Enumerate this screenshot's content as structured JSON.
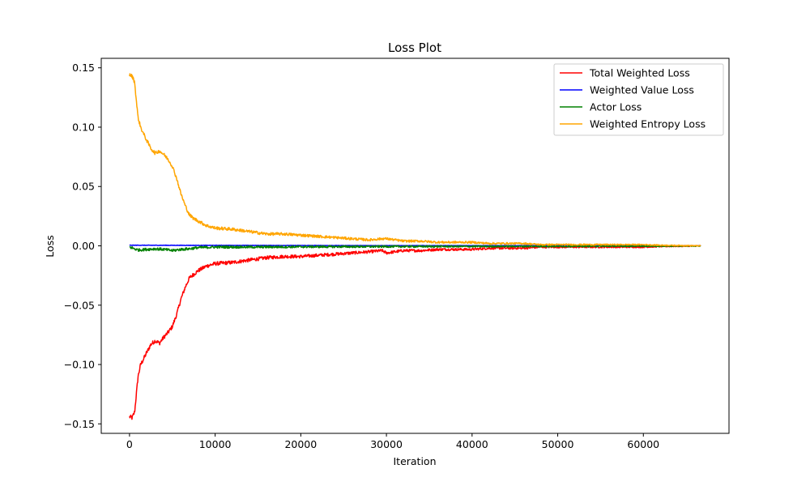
{
  "chart_data": {
    "type": "line",
    "title": "Loss Plot",
    "xlabel": "Iteration",
    "ylabel": "Loss",
    "xlim": [
      -3300,
      70000
    ],
    "ylim": [
      -0.158,
      0.158
    ],
    "xticks": [
      0,
      10000,
      20000,
      30000,
      40000,
      50000,
      60000
    ],
    "xtick_labels": [
      "0",
      "10000",
      "20000",
      "30000",
      "40000",
      "50000",
      "60000"
    ],
    "yticks": [
      -0.15,
      -0.1,
      -0.05,
      0.0,
      0.05,
      0.1,
      0.15
    ],
    "ytick_labels": [
      "−0.15",
      "−0.10",
      "−0.05",
      "0.00",
      "0.05",
      "0.10",
      "0.15"
    ],
    "grid": false,
    "legend_position": "top-right",
    "series": [
      {
        "name": "Total Weighted Loss",
        "color": "#ff0000",
        "noise": 0.0018,
        "x": [
          0,
          300,
          600,
          800,
          1000,
          1300,
          1600,
          2000,
          2500,
          3000,
          3500,
          4000,
          4500,
          5000,
          5500,
          6000,
          6500,
          7000,
          7500,
          8000,
          9000,
          10000,
          12000,
          14000,
          16000,
          18000,
          20000,
          22000,
          24000,
          26000,
          28000,
          29500,
          30000,
          32000,
          34000,
          36000,
          38000,
          40000,
          42000,
          44000,
          46000,
          48000,
          50000,
          52000,
          54000,
          56000,
          58000,
          60000,
          62000,
          64000,
          66700
        ],
        "y": [
          -0.144,
          -0.145,
          -0.14,
          -0.125,
          -0.11,
          -0.1,
          -0.096,
          -0.09,
          -0.083,
          -0.08,
          -0.082,
          -0.077,
          -0.073,
          -0.068,
          -0.058,
          -0.045,
          -0.035,
          -0.027,
          -0.024,
          -0.021,
          -0.017,
          -0.015,
          -0.014,
          -0.012,
          -0.01,
          -0.009,
          -0.009,
          -0.008,
          -0.007,
          -0.006,
          -0.005,
          -0.004,
          -0.006,
          -0.004,
          -0.004,
          -0.003,
          -0.003,
          -0.003,
          -0.002,
          -0.002,
          -0.002,
          -0.001,
          -0.001,
          -0.001,
          -0.001,
          -0.001,
          -0.001,
          -0.001,
          -0.0005,
          -0.0003,
          0.0
        ]
      },
      {
        "name": "Weighted Value Loss",
        "color": "#0000ff",
        "noise": 0.0002,
        "x": [
          0,
          10000,
          20000,
          30000,
          40000,
          50000,
          60000,
          66700
        ],
        "y": [
          0.0005,
          0.0004,
          0.0003,
          0.0002,
          0.0002,
          0.0001,
          0.0001,
          0.0001
        ]
      },
      {
        "name": "Actor Loss",
        "color": "#008000",
        "noise": 0.0012,
        "x": [
          0,
          1000,
          2000,
          3000,
          4000,
          5000,
          6000,
          7000,
          8000,
          10000,
          15000,
          20000,
          30000,
          40000,
          50000,
          60000,
          66700
        ],
        "y": [
          -0.001,
          -0.0035,
          -0.003,
          -0.0025,
          -0.003,
          -0.004,
          -0.003,
          -0.0025,
          -0.0015,
          -0.001,
          -0.001,
          -0.0008,
          -0.0006,
          -0.0005,
          -0.0004,
          -0.0003,
          -0.0002
        ]
      },
      {
        "name": "Weighted Entropy Loss",
        "color": "#ffa500",
        "noise": 0.0015,
        "x": [
          0,
          300,
          600,
          800,
          1000,
          1300,
          1600,
          2000,
          2500,
          3000,
          3500,
          4000,
          4500,
          5000,
          5500,
          6000,
          6500,
          7000,
          7500,
          8000,
          9000,
          10000,
          12000,
          14000,
          16000,
          18000,
          20000,
          22000,
          24000,
          26000,
          28000,
          29500,
          30000,
          32000,
          34000,
          36000,
          38000,
          40000,
          42000,
          44000,
          46000,
          48000,
          50000,
          52000,
          54000,
          56000,
          58000,
          60000,
          62000,
          64000,
          66700
        ],
        "y": [
          0.144,
          0.143,
          0.138,
          0.122,
          0.108,
          0.1,
          0.095,
          0.089,
          0.082,
          0.078,
          0.08,
          0.077,
          0.073,
          0.067,
          0.057,
          0.044,
          0.034,
          0.026,
          0.023,
          0.021,
          0.017,
          0.015,
          0.014,
          0.012,
          0.01,
          0.01,
          0.009,
          0.008,
          0.007,
          0.006,
          0.005,
          0.006,
          0.006,
          0.004,
          0.004,
          0.003,
          0.003,
          0.003,
          0.002,
          0.002,
          0.002,
          0.001,
          0.001,
          0.001,
          0.001,
          0.001,
          0.001,
          0.001,
          0.0005,
          0.0003,
          0.0
        ]
      }
    ]
  }
}
